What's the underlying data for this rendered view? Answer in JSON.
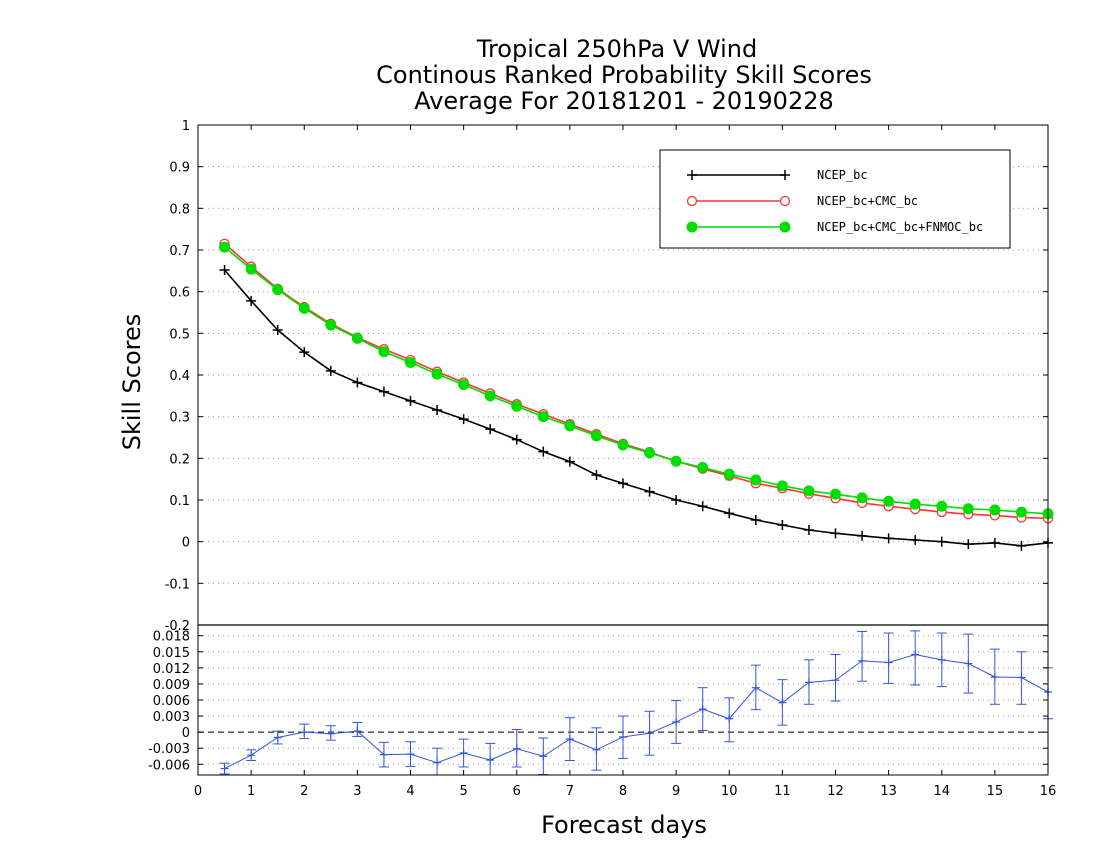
{
  "chart_data": [
    {
      "type": "line",
      "title": [
        "Tropical 250hPa V Wind",
        "Continous Ranked Probability Skill Scores",
        "Average For 20181201 - 20190228"
      ],
      "xlabel": "Forecast days",
      "ylabel": "Skill Scores",
      "xlim": [
        0,
        16
      ],
      "ylim": [
        -0.2,
        1
      ],
      "x_ticks": [
        "0",
        "1",
        "2",
        "3",
        "4",
        "5",
        "6",
        "7",
        "8",
        "9",
        "10",
        "11",
        "12",
        "13",
        "14",
        "15",
        "16"
      ],
      "y_ticks": [
        "-0.2",
        "-0.1",
        "0",
        "0.1",
        "0.2",
        "0.3",
        "0.4",
        "0.5",
        "0.6",
        "0.7",
        "0.8",
        "0.9",
        "1"
      ],
      "grid": "horizontal dotted",
      "legend": "top-right",
      "x": [
        0.5,
        1,
        1.5,
        2,
        2.5,
        3,
        3.5,
        4,
        4.5,
        5,
        5.5,
        6,
        6.5,
        7,
        7.5,
        8,
        8.5,
        9,
        9.5,
        10,
        10.5,
        11,
        11.5,
        12,
        12.5,
        13,
        13.5,
        14,
        14.5,
        15,
        15.5,
        16
      ],
      "series": [
        {
          "name": "NCEP_bc",
          "color": "#000000",
          "marker": "plus",
          "values": [
            0.652,
            0.578,
            0.508,
            0.455,
            0.41,
            0.382,
            0.36,
            0.338,
            0.316,
            0.294,
            0.27,
            0.245,
            0.216,
            0.192,
            0.16,
            0.14,
            0.12,
            0.1,
            0.085,
            0.068,
            0.052,
            0.04,
            0.028,
            0.02,
            0.014,
            0.008,
            0.004,
            0,
            -0.006,
            -0.003,
            -0.01,
            -0.003
          ]
        },
        {
          "name": "NCEP_bc+CMC_bc",
          "color": "#ff3333",
          "marker": "open-circle",
          "values": [
            0.715,
            0.66,
            0.607,
            0.563,
            0.523,
            0.49,
            0.462,
            0.436,
            0.408,
            0.382,
            0.356,
            0.33,
            0.306,
            0.282,
            0.258,
            0.235,
            0.215,
            0.193,
            0.175,
            0.158,
            0.14,
            0.128,
            0.115,
            0.104,
            0.093,
            0.085,
            0.078,
            0.071,
            0.066,
            0.063,
            0.058,
            0.056
          ]
        },
        {
          "name": "NCEP_bc+CMC_bc+FNMOC_bc",
          "color": "#00dd00",
          "marker": "filled-circle",
          "values": [
            0.707,
            0.654,
            0.605,
            0.56,
            0.52,
            0.488,
            0.456,
            0.43,
            0.402,
            0.377,
            0.35,
            0.325,
            0.3,
            0.278,
            0.254,
            0.232,
            0.213,
            0.193,
            0.178,
            0.162,
            0.148,
            0.134,
            0.122,
            0.114,
            0.105,
            0.097,
            0.09,
            0.085,
            0.079,
            0.076,
            0.071,
            0.067
          ]
        }
      ]
    },
    {
      "type": "line",
      "title": "",
      "xlabel": "Forecast days",
      "ylabel": "",
      "xlim": [
        0,
        16
      ],
      "ylim": [
        -0.008,
        0.02
      ],
      "y_ticks": [
        "-0.006",
        "-0.003",
        "0",
        "0.003",
        "0.006",
        "0.009",
        "0.012",
        "0.015",
        "0.018"
      ],
      "grid": "horizontal dotted",
      "error_bars": true,
      "x": [
        0.5,
        1,
        1.5,
        2,
        2.5,
        3,
        3.5,
        4,
        4.5,
        5,
        5.5,
        6,
        6.5,
        7,
        7.5,
        8,
        8.5,
        9,
        9.5,
        10,
        10.5,
        11,
        11.5,
        12,
        12.5,
        13,
        13.5,
        14,
        14.5,
        15,
        15.5,
        16
      ],
      "series": [
        {
          "color": "#3355dd",
          "values": [
            -0.0068,
            -0.0043,
            -0.001,
            0,
            -0.0003,
            0.0002,
            -0.0042,
            -0.0041,
            -0.0057,
            -0.0039,
            -0.0052,
            -0.0031,
            -0.0045,
            -0.0013,
            -0.0033,
            -0.0009,
            -0.0002,
            0.0019,
            0.0043,
            0.0025,
            0.0083,
            0.0055,
            0.0093,
            0.0097,
            0.0133,
            0.013,
            0.0145,
            0.0135,
            0.0128,
            0.0103,
            0.0102,
            0.0075
          ],
          "error_low": [
            -0.0078,
            -0.0053,
            -0.0022,
            -0.0012,
            -0.0015,
            -0.0008,
            -0.0065,
            -0.0064,
            -0.0083,
            -0.0065,
            -0.0081,
            -0.0065,
            -0.0079,
            -0.0053,
            -0.0071,
            -0.0049,
            -0.0043,
            -0.0021,
            0.0003,
            -0.0018,
            0.0042,
            0.0013,
            0.0052,
            0.0058,
            0.0095,
            0.0091,
            0.0088,
            0.0085,
            0.0073,
            0.0052,
            0.0052,
            0.0025
          ],
          "error_high": [
            -0.0058,
            -0.0033,
            0.0002,
            0.0015,
            0.0012,
            0.0018,
            -0.0019,
            -0.0018,
            -0.003,
            -0.0013,
            -0.0021,
            0.0005,
            -0.0011,
            0.0027,
            0.0008,
            0.003,
            0.0039,
            0.0059,
            0.0083,
            0.0064,
            0.0125,
            0.0098,
            0.0135,
            0.0145,
            0.0188,
            0.0185,
            0.0189,
            0.0185,
            0.0183,
            0.0155,
            0.015,
            0.012
          ]
        }
      ]
    }
  ]
}
